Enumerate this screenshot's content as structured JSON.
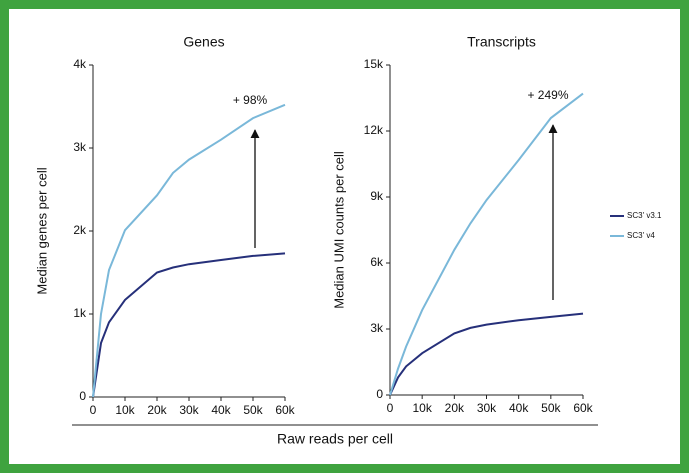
{
  "x_label": "Raw reads per cell",
  "chart_data": [
    {
      "type": "line",
      "title": "Genes",
      "ylabel": "Median genes per cell",
      "x": [
        0,
        2500,
        5000,
        10000,
        20000,
        25000,
        30000,
        40000,
        50000,
        60000
      ],
      "series": [
        {
          "name": "SC3' v3.1",
          "color": "#26307a",
          "values": [
            0,
            650,
            900,
            1170,
            1500,
            1560,
            1600,
            1650,
            1700,
            1730
          ]
        },
        {
          "name": "SC3' v4",
          "color": "#7ab8d9",
          "values": [
            0,
            1000,
            1530,
            2010,
            2430,
            2700,
            2860,
            3100,
            3360,
            3520
          ]
        }
      ],
      "annotations": [
        "+ 98%"
      ],
      "xlim": [
        0,
        60000
      ],
      "xticks": [
        0,
        {
          "value": 10000,
          "label": "10k"
        },
        {
          "value": 20000,
          "label": "20k"
        },
        {
          "value": 30000,
          "label": "30k"
        },
        {
          "value": 40000,
          "label": "40k"
        },
        {
          "value": 50000,
          "label": "50k"
        },
        {
          "value": 60000,
          "label": "60k"
        }
      ],
      "ylim": [
        0,
        4000
      ],
      "yticks": [
        0,
        {
          "value": 1000,
          "label": "1k"
        },
        {
          "value": 2000,
          "label": "2k"
        },
        {
          "value": 3000,
          "label": "3k"
        },
        {
          "value": 4000,
          "label": "4k"
        }
      ],
      "legend": false
    },
    {
      "type": "line",
      "title": "Transcripts",
      "ylabel": "Median UMI counts per cell",
      "x": [
        0,
        2500,
        5000,
        10000,
        20000,
        25000,
        30000,
        40000,
        50000,
        60000
      ],
      "series": [
        {
          "name": "SC3' v3.1",
          "color": "#26307a",
          "values": [
            0,
            800,
            1300,
            1900,
            2800,
            3050,
            3200,
            3400,
            3550,
            3700
          ]
        },
        {
          "name": "SC3' v4",
          "color": "#7ab8d9",
          "values": [
            0,
            1200,
            2200,
            3860,
            6600,
            7800,
            8860,
            10680,
            12590,
            13700
          ]
        }
      ],
      "annotations": [
        "+ 249%"
      ],
      "xlim": [
        0,
        60000
      ],
      "xticks": [
        0,
        {
          "value": 10000,
          "label": "10k"
        },
        {
          "value": 20000,
          "label": "20k"
        },
        {
          "value": 30000,
          "label": "30k"
        },
        {
          "value": 40000,
          "label": "40k"
        },
        {
          "value": 50000,
          "label": "50k"
        },
        {
          "value": 60000,
          "label": "60k"
        }
      ],
      "ylim": [
        0,
        15000
      ],
      "yticks": [
        0,
        {
          "value": 3000,
          "label": "3k"
        },
        {
          "value": 6000,
          "label": "6k"
        },
        {
          "value": 9000,
          "label": "9k"
        },
        {
          "value": 12000,
          "label": "12k"
        },
        {
          "value": 15000,
          "label": "15k"
        }
      ],
      "legend": true
    }
  ]
}
